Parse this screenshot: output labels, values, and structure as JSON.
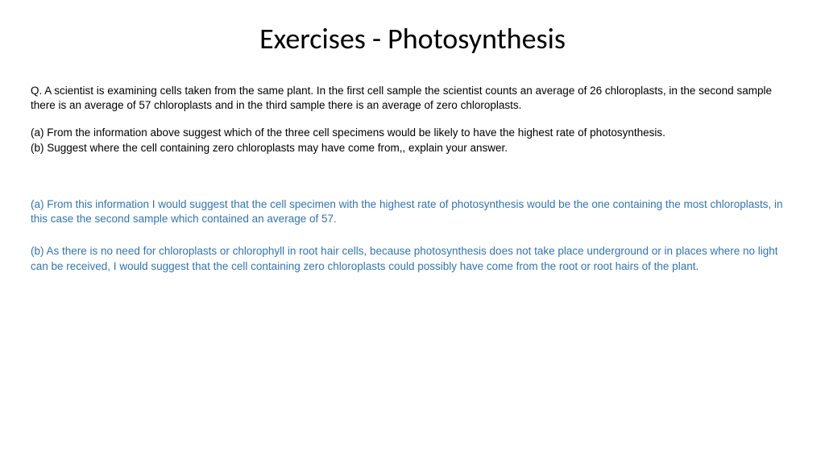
{
  "title": "Exercises - Photosynthesis",
  "question": {
    "prompt": "Q. A scientist is examining cells taken from the same plant. In the first cell sample the scientist counts an average of 26 chloroplasts, in the second sample there is an average of 57 chloroplasts and in the third sample there is an average of zero chloroplasts.",
    "part_a": "(a) From the information above suggest which of the three cell specimens would be likely to have the highest rate of photosynthesis.",
    "part_b": "(b) Suggest where the cell containing zero chloroplasts may have come from,, explain your answer."
  },
  "answers": {
    "a": "(a) From this information I would suggest that the cell specimen with the highest rate of photosynthesis would be the one containing the most chloroplasts, in this case the second sample which contained an average of 57.",
    "b": "(b) As there is no need for chloroplasts or chlorophyll in root hair cells, because photosynthesis does not take place underground or in places where no light can be received, I would suggest that the cell containing zero chloroplasts could possibly have come from the root or root hairs of the plant."
  },
  "colors": {
    "title": "#000000",
    "question_text": "#000000",
    "answer_text": "#2e75b6",
    "background": "#ffffff"
  },
  "typography": {
    "title_fontsize": 36,
    "body_fontsize": 13.5,
    "title_font": "Calibri",
    "body_font": "Arial"
  }
}
